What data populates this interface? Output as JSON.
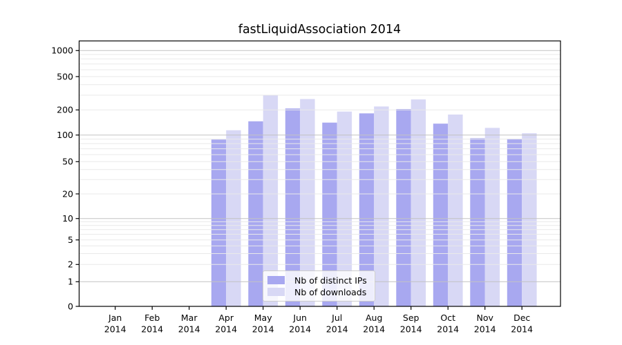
{
  "chart_data": {
    "type": "bar",
    "title": "fastLiquidAssociation 2014",
    "categories": [
      "Jan",
      "Feb",
      "Mar",
      "Apr",
      "May",
      "Jun",
      "Jul",
      "Aug",
      "Sep",
      "Oct",
      "Nov",
      "Dec"
    ],
    "year": "2014",
    "series": [
      {
        "name": "Nb of distinct IPs",
        "color": "#a8a8f0",
        "values": [
          0,
          0,
          0,
          89,
          146,
          208,
          141,
          182,
          205,
          137,
          92,
          91
        ]
      },
      {
        "name": "Nb of downloads",
        "color": "#d8d8f5",
        "values": [
          0,
          0,
          0,
          114,
          300,
          270,
          191,
          220,
          267,
          176,
          122,
          105
        ]
      }
    ],
    "yticks": [
      0,
      1,
      2,
      5,
      10,
      20,
      50,
      100,
      200,
      500,
      1000
    ],
    "yscale": "symlog",
    "ylim": [
      0,
      1300
    ],
    "grid": true,
    "grid_major_values": [
      1,
      10,
      100,
      1000
    ],
    "legend_position": "lower center",
    "colors": {
      "grid_major": "#c2c2c2",
      "grid_minor": "#e9e9e9",
      "axis": "#000000"
    }
  }
}
